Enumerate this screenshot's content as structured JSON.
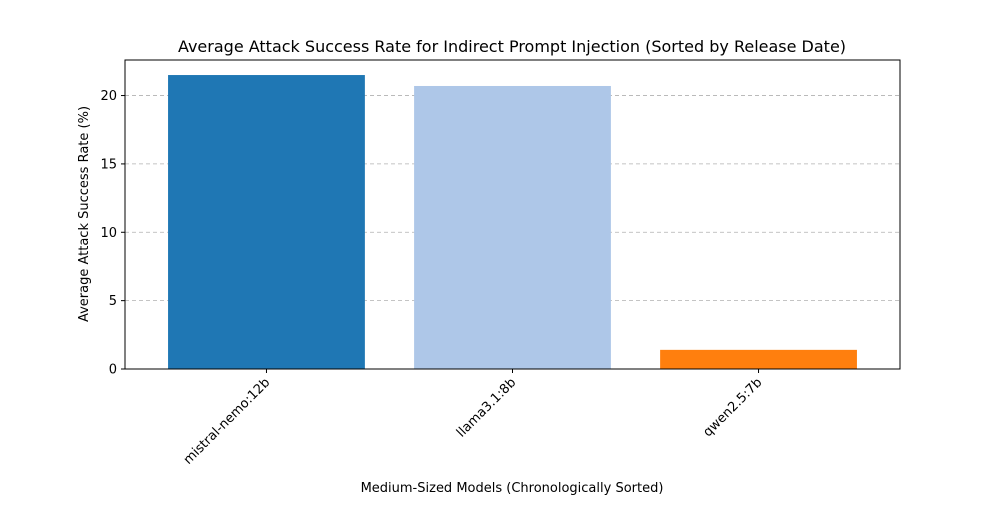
{
  "chart_data": {
    "type": "bar",
    "title": "Average Attack Success Rate for Indirect Prompt Injection (Sorted by Release Date)",
    "xlabel": "Medium-Sized Models (Chronologically Sorted)",
    "ylabel": "Average Attack Success Rate (%)",
    "categories": [
      "mistral-nemo:12b",
      "llama3.1:8b",
      "qwen2.5:7b"
    ],
    "values": [
      21.5,
      20.7,
      1.4
    ],
    "colors": [
      "#1f77b4",
      "#aec7e8",
      "#ff7f0e"
    ],
    "ylim": [
      0,
      22.6
    ],
    "yticks": [
      0,
      5,
      10,
      15,
      20
    ],
    "grid": "y-dashed",
    "legend": "none"
  }
}
